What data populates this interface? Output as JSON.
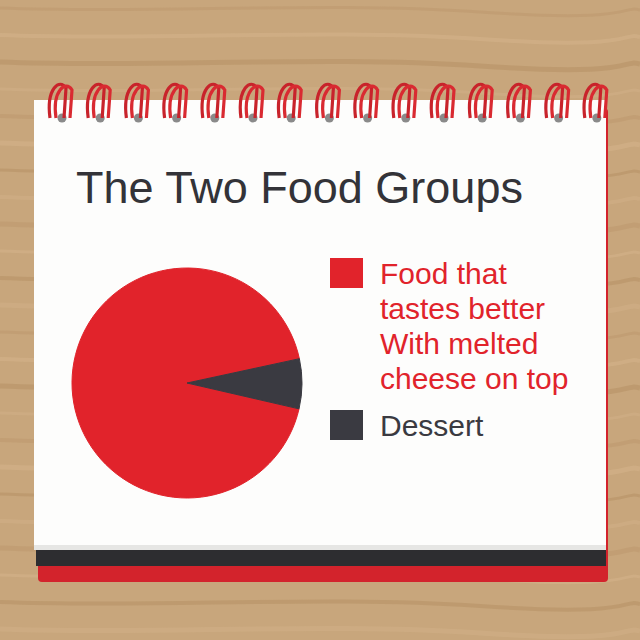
{
  "chart_data": {
    "type": "pie",
    "title": "The Two Food Groups",
    "categories": [
      "Food that tastes better With melted cheese on top",
      "Dessert"
    ],
    "values": [
      93,
      7
    ],
    "colors": [
      "#e1232b",
      "#3a3a41"
    ],
    "legend": "right"
  }
}
